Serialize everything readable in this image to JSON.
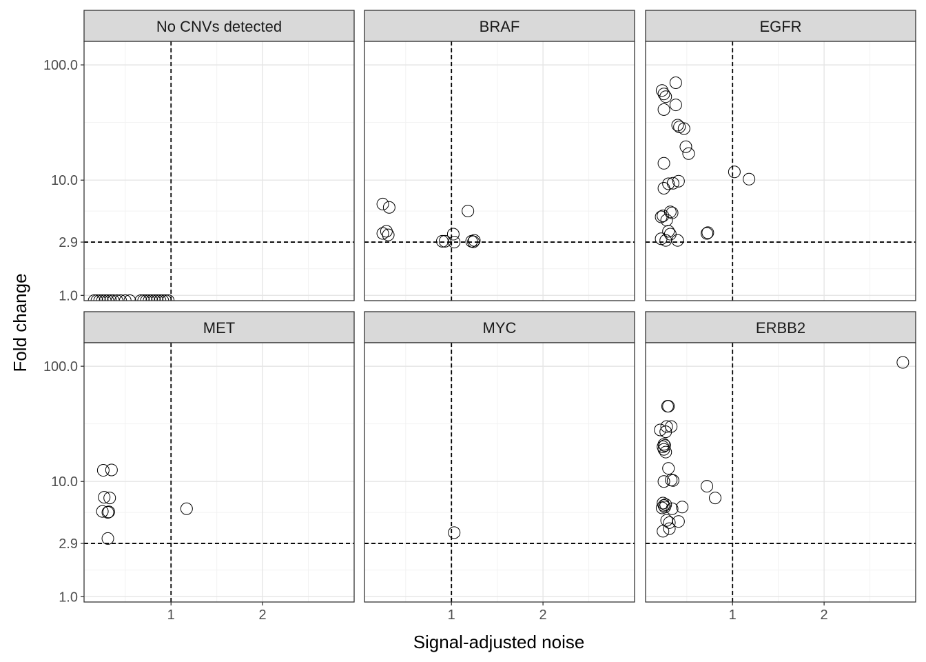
{
  "chart_data": {
    "type": "scatter",
    "layout": "facet-grid 2x3",
    "xlabel": "Signal-adjusted noise",
    "ylabel": "Fold change",
    "x_scale": "linear",
    "y_scale": "log",
    "xlim": [
      0.05,
      3.0
    ],
    "ylim": [
      0.9,
      160
    ],
    "x_ticks": [
      1,
      2
    ],
    "x_tick_labels": [
      "1",
      "2"
    ],
    "y_ticks": [
      1.0,
      2.9,
      10.0,
      100.0
    ],
    "y_tick_labels": [
      "1.0",
      "2.9",
      "10.0",
      "100.0"
    ],
    "reference_lines": {
      "x": 1,
      "y": 2.9,
      "style": "dashed"
    },
    "grid": true,
    "marker": "open circle",
    "panels": [
      {
        "title": "No CNVs detected",
        "x_ticks_shown": false,
        "points": [
          {
            "x": 0.16,
            "y": 0.9
          },
          {
            "x": 0.19,
            "y": 0.9
          },
          {
            "x": 0.22,
            "y": 0.9
          },
          {
            "x": 0.25,
            "y": 0.9
          },
          {
            "x": 0.28,
            "y": 0.9
          },
          {
            "x": 0.31,
            "y": 0.9
          },
          {
            "x": 0.34,
            "y": 0.9
          },
          {
            "x": 0.37,
            "y": 0.9
          },
          {
            "x": 0.41,
            "y": 0.9
          },
          {
            "x": 0.45,
            "y": 0.9
          },
          {
            "x": 0.5,
            "y": 0.9
          },
          {
            "x": 0.55,
            "y": 0.9
          },
          {
            "x": 0.67,
            "y": 0.9
          },
          {
            "x": 0.7,
            "y": 0.9
          },
          {
            "x": 0.73,
            "y": 0.9
          },
          {
            "x": 0.76,
            "y": 0.9
          },
          {
            "x": 0.79,
            "y": 0.9
          },
          {
            "x": 0.82,
            "y": 0.9
          },
          {
            "x": 0.85,
            "y": 0.9
          },
          {
            "x": 0.88,
            "y": 0.9
          },
          {
            "x": 0.91,
            "y": 0.9
          },
          {
            "x": 0.94,
            "y": 0.9
          },
          {
            "x": 0.97,
            "y": 0.9
          }
        ]
      },
      {
        "title": "BRAF",
        "x_ticks_shown": false,
        "points": [
          {
            "x": 0.25,
            "y": 6.2
          },
          {
            "x": 0.32,
            "y": 5.8
          },
          {
            "x": 0.25,
            "y": 3.45
          },
          {
            "x": 0.29,
            "y": 3.6
          },
          {
            "x": 0.31,
            "y": 3.35
          },
          {
            "x": 0.9,
            "y": 2.95
          },
          {
            "x": 0.93,
            "y": 2.95
          },
          {
            "x": 1.02,
            "y": 3.4
          },
          {
            "x": 1.03,
            "y": 2.9
          },
          {
            "x": 1.18,
            "y": 5.4
          },
          {
            "x": 1.22,
            "y": 2.95
          },
          {
            "x": 1.25,
            "y": 3.0
          },
          {
            "x": 1.24,
            "y": 2.92
          }
        ]
      },
      {
        "title": "EGFR",
        "x_ticks_shown": false,
        "points": [
          {
            "x": 0.38,
            "y": 70
          },
          {
            "x": 0.23,
            "y": 60
          },
          {
            "x": 0.25,
            "y": 56
          },
          {
            "x": 0.27,
            "y": 53
          },
          {
            "x": 0.38,
            "y": 45
          },
          {
            "x": 0.25,
            "y": 41
          },
          {
            "x": 0.4,
            "y": 30
          },
          {
            "x": 0.42,
            "y": 29
          },
          {
            "x": 0.47,
            "y": 28
          },
          {
            "x": 0.49,
            "y": 19.5
          },
          {
            "x": 0.52,
            "y": 17
          },
          {
            "x": 0.25,
            "y": 14
          },
          {
            "x": 1.02,
            "y": 11.8
          },
          {
            "x": 1.18,
            "y": 10.2
          },
          {
            "x": 0.41,
            "y": 9.8
          },
          {
            "x": 0.3,
            "y": 9.3
          },
          {
            "x": 0.35,
            "y": 9.4
          },
          {
            "x": 0.25,
            "y": 8.5
          },
          {
            "x": 0.32,
            "y": 5.3
          },
          {
            "x": 0.34,
            "y": 5.2
          },
          {
            "x": 0.22,
            "y": 4.8
          },
          {
            "x": 0.24,
            "y": 4.9
          },
          {
            "x": 0.28,
            "y": 4.5
          },
          {
            "x": 0.3,
            "y": 3.6
          },
          {
            "x": 0.32,
            "y": 3.4
          },
          {
            "x": 0.22,
            "y": 3.1
          },
          {
            "x": 0.27,
            "y": 3.0
          },
          {
            "x": 0.4,
            "y": 3.0
          },
          {
            "x": 0.72,
            "y": 3.45
          },
          {
            "x": 0.73,
            "y": 3.5
          }
        ]
      },
      {
        "title": "MET",
        "x_ticks_shown": true,
        "points": [
          {
            "x": 0.26,
            "y": 12.5
          },
          {
            "x": 0.35,
            "y": 12.6
          },
          {
            "x": 0.27,
            "y": 7.3
          },
          {
            "x": 0.33,
            "y": 7.2
          },
          {
            "x": 0.25,
            "y": 5.5
          },
          {
            "x": 0.31,
            "y": 5.4
          },
          {
            "x": 0.32,
            "y": 5.45
          },
          {
            "x": 0.31,
            "y": 3.2
          },
          {
            "x": 1.17,
            "y": 5.8
          }
        ]
      },
      {
        "title": "MYC",
        "x_ticks_shown": true,
        "points": [
          {
            "x": 1.03,
            "y": 3.6
          }
        ]
      },
      {
        "title": "ERBB2",
        "x_ticks_shown": true,
        "points": [
          {
            "x": 2.86,
            "y": 108
          },
          {
            "x": 0.29,
            "y": 45
          },
          {
            "x": 0.3,
            "y": 45
          },
          {
            "x": 0.28,
            "y": 30
          },
          {
            "x": 0.33,
            "y": 30
          },
          {
            "x": 0.21,
            "y": 28
          },
          {
            "x": 0.27,
            "y": 27
          },
          {
            "x": 0.25,
            "y": 21
          },
          {
            "x": 0.26,
            "y": 20.5
          },
          {
            "x": 0.24,
            "y": 20
          },
          {
            "x": 0.25,
            "y": 19
          },
          {
            "x": 0.27,
            "y": 18
          },
          {
            "x": 0.3,
            "y": 13
          },
          {
            "x": 0.33,
            "y": 10.3
          },
          {
            "x": 0.35,
            "y": 10.2
          },
          {
            "x": 0.25,
            "y": 10.0
          },
          {
            "x": 0.72,
            "y": 9.1
          },
          {
            "x": 0.81,
            "y": 7.2
          },
          {
            "x": 0.24,
            "y": 6.5
          },
          {
            "x": 0.25,
            "y": 6.2
          },
          {
            "x": 0.26,
            "y": 6.0
          },
          {
            "x": 0.27,
            "y": 6.3
          },
          {
            "x": 0.23,
            "y": 5.9
          },
          {
            "x": 0.34,
            "y": 5.8
          },
          {
            "x": 0.45,
            "y": 6.0
          },
          {
            "x": 0.28,
            "y": 4.6
          },
          {
            "x": 0.31,
            "y": 4.4
          },
          {
            "x": 0.41,
            "y": 4.5
          },
          {
            "x": 0.31,
            "y": 3.9
          },
          {
            "x": 0.24,
            "y": 3.7
          }
        ]
      }
    ]
  }
}
